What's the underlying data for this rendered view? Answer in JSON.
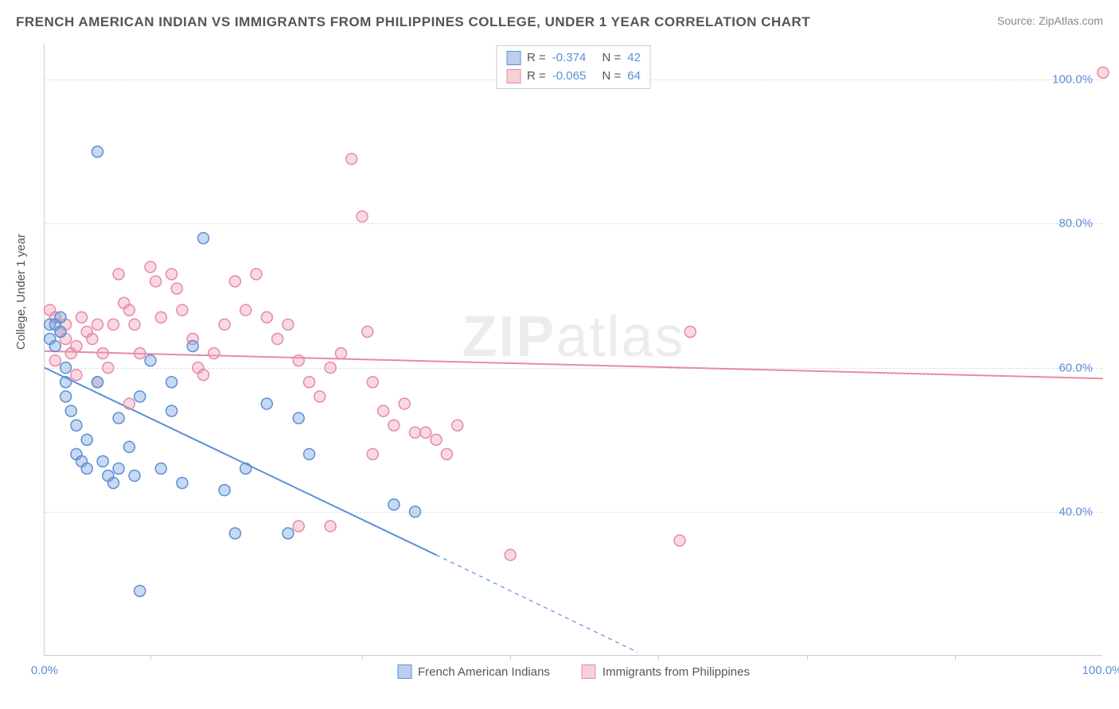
{
  "title": "FRENCH AMERICAN INDIAN VS IMMIGRANTS FROM PHILIPPINES COLLEGE, UNDER 1 YEAR CORRELATION CHART",
  "source": "Source: ZipAtlas.com",
  "ylabel": "College, Under 1 year",
  "watermark": {
    "bold": "ZIP",
    "rest": "atlas"
  },
  "chart": {
    "type": "scatter",
    "xlim": [
      0,
      100
    ],
    "ylim": [
      20,
      105
    ],
    "ytick_labels": [
      "40.0%",
      "60.0%",
      "80.0%",
      "100.0%"
    ],
    "ytick_values": [
      40,
      60,
      80,
      100
    ],
    "xtick_labels": [
      "0.0%",
      "100.0%"
    ],
    "xtick_values": [
      0,
      100
    ],
    "xtick_marks": [
      10,
      30,
      44,
      58,
      72,
      86
    ],
    "grid_color": "#dddddd",
    "axis_color": "#cccccc",
    "background": "#ffffff",
    "marker_radius": 7,
    "marker_stroke_width": 1.5,
    "line_width": 2,
    "series": [
      {
        "name": "French American Indians",
        "fill": "rgba(120,160,220,0.4)",
        "stroke": "#5b8fd6",
        "R": "-0.374",
        "N": "42",
        "trend": {
          "x1": 0,
          "y1": 60,
          "x2": 37,
          "y2": 34,
          "ext_x2": 56,
          "ext_y2": 20.5,
          "type": "solid-dashed"
        },
        "points": [
          [
            0.5,
            66
          ],
          [
            0.5,
            64
          ],
          [
            1,
            66
          ],
          [
            1,
            63
          ],
          [
            1.5,
            65
          ],
          [
            1.5,
            67
          ],
          [
            2,
            60
          ],
          [
            2,
            58
          ],
          [
            2,
            56
          ],
          [
            2.5,
            54
          ],
          [
            3,
            52
          ],
          [
            3,
            48
          ],
          [
            3.5,
            47
          ],
          [
            4,
            46
          ],
          [
            4,
            50
          ],
          [
            5,
            90
          ],
          [
            5,
            58
          ],
          [
            5.5,
            47
          ],
          [
            6,
            45
          ],
          [
            6.5,
            44
          ],
          [
            7,
            46
          ],
          [
            7,
            53
          ],
          [
            8,
            49
          ],
          [
            8.5,
            45
          ],
          [
            9,
            56
          ],
          [
            10,
            61
          ],
          [
            11,
            46
          ],
          [
            12,
            58
          ],
          [
            12,
            54
          ],
          [
            13,
            44
          ],
          [
            14,
            63
          ],
          [
            15,
            78
          ],
          [
            17,
            43
          ],
          [
            18,
            37
          ],
          [
            19,
            46
          ],
          [
            21,
            55
          ],
          [
            23,
            37
          ],
          [
            24,
            53
          ],
          [
            25,
            48
          ],
          [
            33,
            41
          ],
          [
            35,
            40
          ],
          [
            9,
            29
          ]
        ]
      },
      {
        "name": "Immigrants from Philippines",
        "fill": "rgba(240,160,180,0.4)",
        "stroke": "#e68aa5",
        "R": "-0.065",
        "N": "64",
        "trend": {
          "x1": 0,
          "y1": 62.3,
          "x2": 100,
          "y2": 58.5,
          "type": "solid"
        },
        "points": [
          [
            0.5,
            68
          ],
          [
            1,
            67
          ],
          [
            1.5,
            65
          ],
          [
            2,
            66
          ],
          [
            2,
            64
          ],
          [
            2.5,
            62
          ],
          [
            3,
            63
          ],
          [
            3.5,
            67
          ],
          [
            4,
            65
          ],
          [
            4.5,
            64
          ],
          [
            5,
            66
          ],
          [
            5.5,
            62
          ],
          [
            6,
            60
          ],
          [
            6.5,
            66
          ],
          [
            7,
            73
          ],
          [
            7.5,
            69
          ],
          [
            8,
            68
          ],
          [
            8.5,
            66
          ],
          [
            9,
            62
          ],
          [
            10,
            74
          ],
          [
            10.5,
            72
          ],
          [
            11,
            67
          ],
          [
            12,
            73
          ],
          [
            12.5,
            71
          ],
          [
            13,
            68
          ],
          [
            14,
            64
          ],
          [
            14.5,
            60
          ],
          [
            15,
            59
          ],
          [
            16,
            62
          ],
          [
            17,
            66
          ],
          [
            18,
            72
          ],
          [
            19,
            68
          ],
          [
            20,
            73
          ],
          [
            21,
            67
          ],
          [
            22,
            64
          ],
          [
            23,
            66
          ],
          [
            24,
            61
          ],
          [
            25,
            58
          ],
          [
            26,
            56
          ],
          [
            27,
            60
          ],
          [
            28,
            62
          ],
          [
            29,
            89
          ],
          [
            30,
            81
          ],
          [
            30.5,
            65
          ],
          [
            31,
            58
          ],
          [
            32,
            54
          ],
          [
            33,
            52
          ],
          [
            34,
            55
          ],
          [
            35,
            51
          ],
          [
            36,
            51
          ],
          [
            37,
            50
          ],
          [
            38,
            48
          ],
          [
            39,
            52
          ],
          [
            24,
            38
          ],
          [
            27,
            38
          ],
          [
            31,
            48
          ],
          [
            44,
            34
          ],
          [
            60,
            36
          ],
          [
            61,
            65
          ],
          [
            100,
            101
          ],
          [
            1,
            61
          ],
          [
            3,
            59
          ],
          [
            5,
            58
          ],
          [
            8,
            55
          ]
        ]
      }
    ]
  },
  "legend": {
    "r_label": "R =",
    "n_label": "N ="
  }
}
